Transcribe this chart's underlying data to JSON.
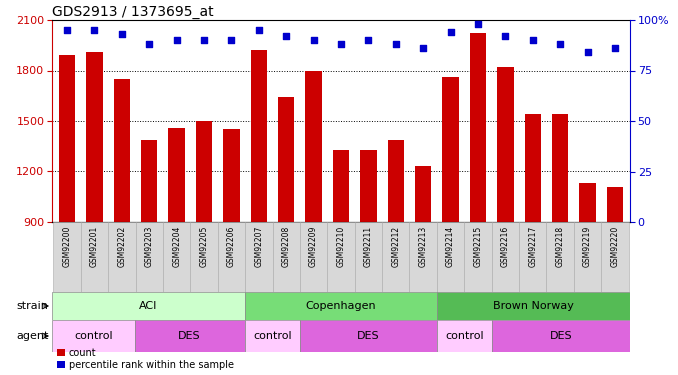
{
  "title": "GDS2913 / 1373695_at",
  "samples": [
    "GSM92200",
    "GSM92201",
    "GSM92202",
    "GSM92203",
    "GSM92204",
    "GSM92205",
    "GSM92206",
    "GSM92207",
    "GSM92208",
    "GSM92209",
    "GSM92210",
    "GSM92211",
    "GSM92212",
    "GSM92213",
    "GSM92214",
    "GSM92215",
    "GSM92216",
    "GSM92217",
    "GSM92218",
    "GSM92219",
    "GSM92220"
  ],
  "counts": [
    1890,
    1910,
    1750,
    1390,
    1460,
    1500,
    1450,
    1920,
    1640,
    1800,
    1330,
    1330,
    1390,
    1230,
    1760,
    2020,
    1820,
    1540,
    1540,
    1130,
    1110
  ],
  "percentiles": [
    95,
    95,
    93,
    88,
    90,
    90,
    90,
    95,
    92,
    90,
    88,
    90,
    88,
    86,
    94,
    98,
    92,
    90,
    88,
    84,
    86
  ],
  "ylim_left": [
    900,
    2100
  ],
  "ylim_right": [
    0,
    100
  ],
  "yticks_left": [
    900,
    1200,
    1500,
    1800,
    2100
  ],
  "yticks_right": [
    0,
    25,
    50,
    75,
    100
  ],
  "bar_color": "#CC0000",
  "dot_color": "#0000CC",
  "bar_width": 0.6,
  "strain_groups": [
    {
      "label": "ACI",
      "start": 0,
      "end": 6,
      "color": "#ccffcc"
    },
    {
      "label": "Copenhagen",
      "start": 7,
      "end": 13,
      "color": "#77dd77"
    },
    {
      "label": "Brown Norway",
      "start": 14,
      "end": 20,
      "color": "#55bb55"
    }
  ],
  "agent_groups": [
    {
      "label": "control",
      "start": 0,
      "end": 2,
      "color": "#ffccff"
    },
    {
      "label": "DES",
      "start": 3,
      "end": 6,
      "color": "#dd66dd"
    },
    {
      "label": "control",
      "start": 7,
      "end": 8,
      "color": "#ffccff"
    },
    {
      "label": "DES",
      "start": 9,
      "end": 13,
      "color": "#dd66dd"
    },
    {
      "label": "control",
      "start": 14,
      "end": 15,
      "color": "#ffccff"
    },
    {
      "label": "DES",
      "start": 16,
      "end": 20,
      "color": "#dd66dd"
    }
  ],
  "count_legend": "count",
  "pct_legend": "percentile rank within the sample",
  "strain_label": "strain",
  "agent_label": "agent",
  "tick_color_left": "#CC0000",
  "tick_color_right": "#0000CC",
  "tick_fontsize": 8,
  "label_fontsize": 8,
  "title_fontsize": 10
}
